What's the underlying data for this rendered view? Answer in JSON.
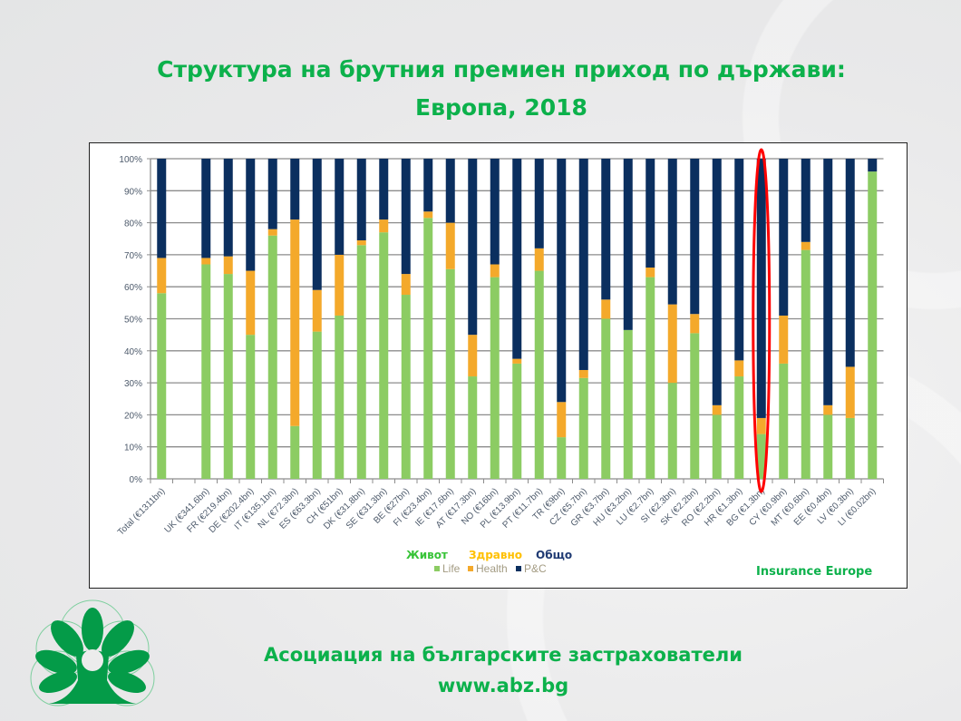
{
  "slide": {
    "title_line1": "Структура на брутния премиен приход по държави:",
    "title_line2": "Европа, 2018",
    "footer_org": "Асоциация на българските застрахователи",
    "footer_url": "www.abz.bg",
    "logo": "abz-tree-logo",
    "highlight": "BG (€1.3bn)",
    "highlight_color": "#ff0000"
  },
  "chart_data": {
    "type": "bar",
    "stacked": true,
    "percent": true,
    "source": "Insurance Europe",
    "categories": [
      "Total (€1311bn)",
      "",
      "UK (€341.6bn)",
      "FR (€219.4bn)",
      "DE (€202.4bn)",
      "IT (€135.1bn)",
      "NL (€72.3bn)",
      "ES (€63.3bn)",
      "CH (€51bn)",
      "DK (€31.8bn)",
      "SE (€31.3bn)",
      "BE (€27bn)",
      "FI (€23.4bn)",
      "IE (€17.6bn)",
      "AT (€17.3bn)",
      "NO (€16bn)",
      "PL (€13.9bn)",
      "PT (€11.7bn)",
      "TR (€9bn)",
      "CZ (€5.7bn)",
      "GR (€3.7bn)",
      "HU (€3.2bn)",
      "LU (€2.7bn)",
      "SI (€2.3bn)",
      "SK (€2.2bn)",
      "RO (€2.2bn)",
      "HR (€1.3bn)",
      "BG (€1.3bn)",
      "CY (€0.9bn)",
      "MT (€0.6bn)",
      "EE (€0.4bn)",
      "LV (€0.3bn)",
      "LI (€0.02bn)"
    ],
    "series": [
      {
        "name": "Life",
        "label_bg": "Живот",
        "color": "#8ccc63",
        "values": [
          58,
          null,
          67,
          64,
          45,
          76,
          16.5,
          46,
          51,
          73,
          77,
          57.5,
          81.5,
          65.5,
          32,
          63,
          36,
          65,
          13,
          31.5,
          50,
          46.5,
          63,
          30,
          45.5,
          20,
          32,
          14,
          36,
          71.5,
          20,
          19,
          96
        ]
      },
      {
        "name": "Health",
        "label_bg": "Здравно",
        "color": "#f4a92b",
        "values": [
          11,
          null,
          2,
          5.5,
          20,
          2,
          64.5,
          13,
          19,
          1.5,
          4,
          6.5,
          2,
          14.5,
          13,
          4,
          1.5,
          7,
          11,
          2.5,
          6,
          0,
          3,
          24.5,
          6,
          3,
          5,
          5,
          15,
          2.5,
          3,
          16,
          0
        ]
      },
      {
        "name": "P&C",
        "label_bg": "Общо",
        "color": "#0b2f5f",
        "values": [
          31,
          null,
          31,
          30.5,
          35,
          22,
          19,
          41,
          30,
          25.5,
          19,
          36,
          16.5,
          20,
          55,
          33,
          62.5,
          28,
          76,
          66,
          44,
          53.5,
          34,
          45.5,
          48.5,
          77,
          63,
          81,
          49,
          26,
          77,
          65,
          4
        ]
      }
    ],
    "legend_colors": {
      "Life": "#37c337",
      "Health": "#ffc000",
      "P&C": "#1f3a73"
    },
    "yticks": [
      "0%",
      "10%",
      "20%",
      "30%",
      "40%",
      "50%",
      "60%",
      "70%",
      "80%",
      "90%",
      "100%"
    ],
    "ylim": [
      0,
      100
    ],
    "grid": true,
    "legend_position": "bottom-center"
  }
}
